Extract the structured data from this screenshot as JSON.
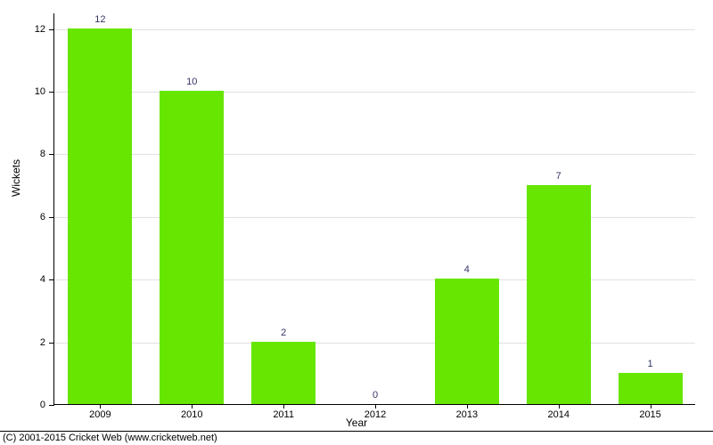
{
  "chart": {
    "type": "bar",
    "categories": [
      "2009",
      "2010",
      "2011",
      "2012",
      "2013",
      "2014",
      "2015"
    ],
    "values": [
      12,
      10,
      2,
      0,
      4,
      7,
      1
    ],
    "value_labels": [
      "12",
      "10",
      "2",
      "0",
      "4",
      "7",
      "1"
    ],
    "bar_color": "#66e600",
    "bar_width": 0.7,
    "ylabel": "Wickets",
    "xlabel": "Year",
    "ylim": [
      0,
      12.5
    ],
    "yticks": [
      0,
      2,
      4,
      6,
      8,
      10,
      12
    ],
    "ytick_labels": [
      "0",
      "2",
      "4",
      "6",
      "8",
      "10",
      "12"
    ],
    "background_color": "#ffffff",
    "grid_color": "#e0e0e0",
    "value_label_color": "#333366",
    "axis_color": "#000000",
    "label_fontsize": 11,
    "axis_label_fontsize": 12
  },
  "copyright": "(C) 2001-2015 Cricket Web (www.cricketweb.net)"
}
